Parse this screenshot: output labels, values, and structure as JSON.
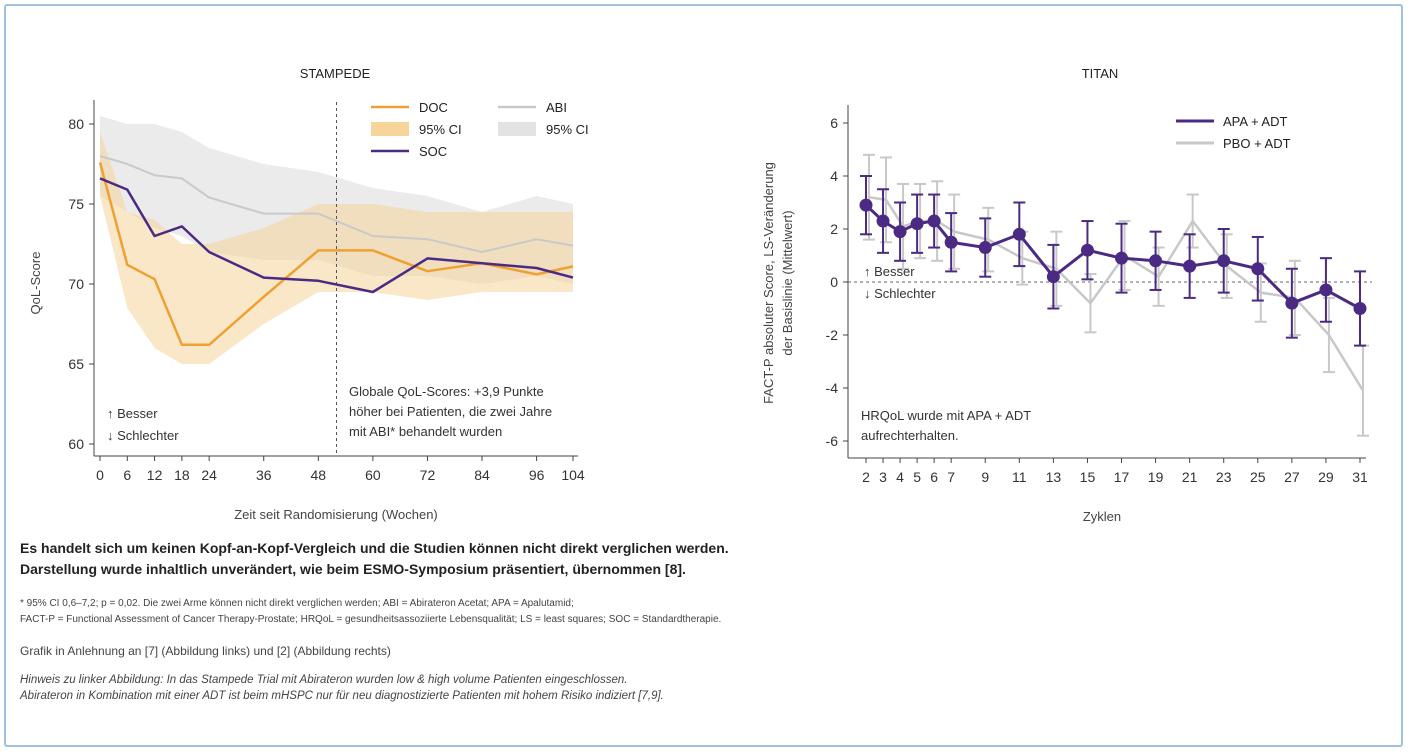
{
  "colors": {
    "doc": "#f0a030",
    "doc_ci": "#f6d49a",
    "soc": "#4b2a83",
    "abi": "#c9c9c9",
    "abi_ci": "#e3e3e3",
    "apa": "#4b2a83",
    "pbo": "#c8c8c8",
    "frame": "#9fc1de"
  },
  "chart_data": [
    {
      "type": "line",
      "title": "STAMPEDE",
      "xlabel": "Zeit seit Randomisierung (Wochen)",
      "ylabel": "QoL-Score",
      "x_ticks": [
        0,
        6,
        12,
        18,
        24,
        36,
        48,
        60,
        72,
        84,
        96,
        104
      ],
      "y_ticks": [
        60,
        65,
        70,
        75,
        80
      ],
      "xlim": [
        0,
        104
      ],
      "ylim": [
        60,
        81
      ],
      "legend": [
        {
          "label": "DOC",
          "kind": "line",
          "color": "doc"
        },
        {
          "label": "95% CI",
          "kind": "band",
          "color": "doc_ci"
        },
        {
          "label": "SOC",
          "kind": "line",
          "color": "soc"
        },
        {
          "label": "ABI",
          "kind": "line",
          "color": "abi"
        },
        {
          "label": "95% CI",
          "kind": "band",
          "color": "abi_ci"
        }
      ],
      "series": [
        {
          "name": "DOC",
          "color": "doc",
          "x": [
            0,
            6,
            12,
            18,
            24,
            36,
            48,
            60,
            72,
            84,
            96,
            104
          ],
          "y": [
            77.6,
            71.2,
            70.3,
            66.2,
            66.2,
            69.2,
            72.1,
            72.1,
            70.8,
            71.3,
            70.6,
            71.1
          ]
        },
        {
          "name": "SOC",
          "color": "soc",
          "x": [
            0,
            6,
            12,
            18,
            24,
            36,
            48,
            60,
            72,
            84,
            96,
            104
          ],
          "y": [
            76.6,
            75.9,
            73.0,
            73.6,
            72.0,
            70.4,
            70.2,
            69.5,
            71.6,
            71.3,
            71.0,
            70.4
          ]
        },
        {
          "name": "ABI",
          "color": "abi",
          "x": [
            0,
            6,
            12,
            18,
            24,
            36,
            48,
            60,
            72,
            84,
            96,
            104
          ],
          "y": [
            78.0,
            77.5,
            76.8,
            76.6,
            75.4,
            74.4,
            74.4,
            73.0,
            72.8,
            72.0,
            72.8,
            72.4
          ]
        },
        {
          "name": "DOC 95% CI",
          "kind": "band",
          "color": "doc_ci",
          "x": [
            0,
            6,
            12,
            18,
            24,
            36,
            48,
            60,
            72,
            84,
            96,
            104
          ],
          "lower": [
            75.5,
            68.5,
            66.0,
            65.0,
            65.0,
            67.5,
            69.5,
            69.5,
            69.0,
            69.5,
            69.5,
            69.5
          ],
          "upper": [
            79.5,
            74.5,
            74.0,
            72.5,
            72.5,
            73.5,
            75.0,
            75.0,
            74.5,
            74.5,
            74.5,
            74.5
          ]
        },
        {
          "name": "ABI 95% CI",
          "kind": "band",
          "color": "abi_ci",
          "x": [
            0,
            6,
            12,
            18,
            24,
            36,
            48,
            60,
            72,
            84,
            96,
            104
          ],
          "lower": [
            75.5,
            74.5,
            73.5,
            73.0,
            72.0,
            71.5,
            71.5,
            70.5,
            70.5,
            70.0,
            70.5,
            70.0
          ],
          "upper": [
            80.5,
            80.0,
            80.0,
            79.5,
            78.5,
            77.5,
            77.0,
            76.0,
            75.5,
            74.5,
            75.5,
            75.0
          ]
        }
      ],
      "vline_x": 52,
      "annotation_left": [
        "↑ Besser",
        "↓ Schlechter"
      ],
      "annotation_right": [
        "Globale QoL-Scores: +3,9 Punkte",
        "höher bei Patienten, die zwei Jahre",
        "mit ABI* behandelt wurden"
      ],
      "grid": false,
      "legend_position": "top-right"
    },
    {
      "type": "line",
      "title": "TITAN",
      "xlabel": "Zyklen",
      "ylabel": [
        "FACT-P absoluter Score, LS-Veränderung",
        "der Basislinie (Mittelwert)"
      ],
      "x_ticks": [
        2,
        3,
        4,
        5,
        6,
        7,
        9,
        11,
        13,
        15,
        17,
        19,
        21,
        23,
        25,
        27,
        29,
        31
      ],
      "y_ticks": [
        -6,
        -4,
        -2,
        0,
        2,
        4,
        6
      ],
      "xlim": [
        2,
        31
      ],
      "ylim": [
        -6.5,
        6.5
      ],
      "legend": [
        {
          "label": "APA + ADT",
          "color": "apa"
        },
        {
          "label": "PBO + ADT",
          "color": "pbo"
        }
      ],
      "series": [
        {
          "name": "APA + ADT",
          "color": "apa",
          "x": [
            2,
            3,
            4,
            5,
            6,
            7,
            9,
            11,
            13,
            15,
            17,
            19,
            21,
            23,
            25,
            27,
            29,
            31
          ],
          "y": [
            2.9,
            2.3,
            1.9,
            2.2,
            2.3,
            1.5,
            1.3,
            1.8,
            0.2,
            1.2,
            0.9,
            0.8,
            0.6,
            0.8,
            0.5,
            -0.8,
            -0.3,
            -1.0
          ],
          "err": [
            1.1,
            1.2,
            1.1,
            1.1,
            1.0,
            1.1,
            1.1,
            1.2,
            1.2,
            1.1,
            1.3,
            1.1,
            1.2,
            1.2,
            1.2,
            1.3,
            1.2,
            1.4
          ]
        },
        {
          "name": "PBO + ADT",
          "color": "pbo",
          "x": [
            2,
            3,
            4,
            5,
            6,
            7,
            9,
            11,
            13,
            15,
            17,
            19,
            21,
            23,
            25,
            27,
            29,
            31
          ],
          "y": [
            3.2,
            3.1,
            2.1,
            2.3,
            2.3,
            1.9,
            1.6,
            0.9,
            0.5,
            -0.8,
            1.0,
            0.2,
            2.3,
            0.6,
            -0.4,
            -0.6,
            -2.0,
            -4.1
          ],
          "err": [
            1.6,
            1.6,
            1.6,
            1.4,
            1.5,
            1.4,
            1.2,
            1.0,
            1.4,
            1.1,
            1.3,
            1.1,
            1.0,
            1.2,
            1.1,
            1.4,
            1.4,
            1.7
          ]
        }
      ],
      "zero_line": true,
      "annotation_left": [
        "↑ Besser",
        "↓ Schlechter"
      ],
      "annotation_bottom": [
        "HRQoL wurde mit APA + ADT",
        "aufrechterhalten."
      ],
      "grid": false,
      "legend_position": "top-right"
    }
  ],
  "texts": {
    "disclaimer_line1": "Es handelt sich um keinen Kopf-an-Kopf-Vergleich und die Studien können nicht direkt verglichen werden.",
    "disclaimer_line2": "Darstellung wurde inhaltlich unverändert, wie beim ESMO-Symposium präsentiert, übernommen [8].",
    "footnote_line1": "* 95% CI 0,6–7,2; p = 0,02. Die zwei Arme können nicht direkt verglichen werden; ABI = Abirateron Acetat; APA = Apalutamid;",
    "footnote_line2": "FACT-P = Functional Assessment of Cancer Therapy-Prostate; HRQoL = gesundheitsassoziierte Lebensqualität; LS = least squares; SOC = Standardtherapie.",
    "source": "Grafik in Anlehnung an [7] (Abbildung links) und [2] (Abbildung rechts)",
    "hint_line1": "Hinweis zu linker Abbildung: In das Stampede Trial mit Abirateron wurden low & high volume Patienten eingeschlossen.",
    "hint_line2": "Abirateron in Kombination mit einer ADT ist beim mHSPC nur für neu diagnostizierte Patienten mit hohem Risiko indiziert [7,9]."
  }
}
